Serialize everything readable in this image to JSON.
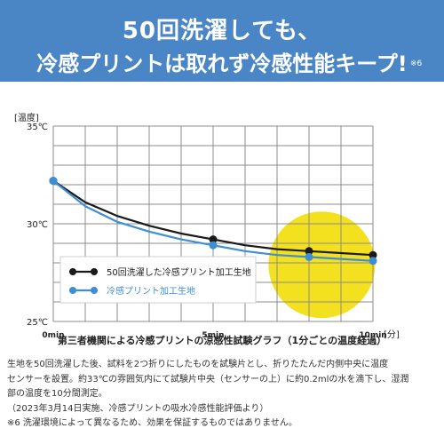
{
  "header": {
    "line1": "50回洗濯しても、",
    "line2": "冷感プリントは取れず冷感性能キープ!",
    "note_ref": "※6"
  },
  "colors": {
    "header_bg": "#4a86c6",
    "series_washed": "#1a1a1a",
    "series_print": "#3d8fd1",
    "highlight": "#f3e11f",
    "grid": "#8c8c8c"
  },
  "chart_data": {
    "type": "line",
    "xlabel": "[分]",
    "ylabel": "[温度]",
    "x_ticks": [
      {
        "value": 0,
        "label": "0min"
      },
      {
        "value": 5,
        "label": "5min"
      },
      {
        "value": 10,
        "label": "10min"
      }
    ],
    "y_ticks": [
      {
        "value": 35,
        "label": "35℃"
      },
      {
        "value": 30,
        "label": "30℃"
      },
      {
        "value": 25,
        "label": "25℃"
      }
    ],
    "xlim": [
      0,
      10
    ],
    "ylim": [
      25,
      35
    ],
    "grid": true,
    "legend_position": "bottom-left",
    "highlight": "yellow circle around the 8–10 min region",
    "series": [
      {
        "name": "50回洗濯した冷感プリント加工生地",
        "color": "#1a1a1a",
        "x": [
          0,
          1,
          2,
          3,
          4,
          5,
          6,
          7,
          8,
          9,
          10
        ],
        "y": [
          32.2,
          31.1,
          30.4,
          29.9,
          29.5,
          29.2,
          28.9,
          28.7,
          28.6,
          28.5,
          28.4
        ],
        "markers_at": [
          0,
          5,
          8,
          10
        ]
      },
      {
        "name": "冷感プリント加工生地",
        "color": "#3d8fd1",
        "x": [
          0,
          1,
          2,
          3,
          4,
          5,
          6,
          7,
          8,
          9,
          10
        ],
        "y": [
          32.2,
          30.9,
          30.1,
          29.6,
          29.2,
          28.9,
          28.6,
          28.4,
          28.3,
          28.2,
          28.1
        ],
        "markers_at": [
          0,
          5,
          8,
          10
        ]
      }
    ]
  },
  "caption": "第三者機関による冷感プリントの涼感性試験グラフ（1分ごとの温度経過）",
  "description": [
    "生地を50回洗濯した後、試料を2つ折りにしたものを試験片とし、折りたたんだ内側中央に温度",
    "センサーを設置。約33℃の雰囲気内にて試験片中央（センサーの上）に約0.2mlの水を滴下し、湿潤",
    "部の温度を10分間測定。",
    "（2023年3月14日実施、冷感プリントの吸水冷感性能評価より）",
    "※6 洗濯環境によって異なるため、効果を保証するものではありません。"
  ]
}
